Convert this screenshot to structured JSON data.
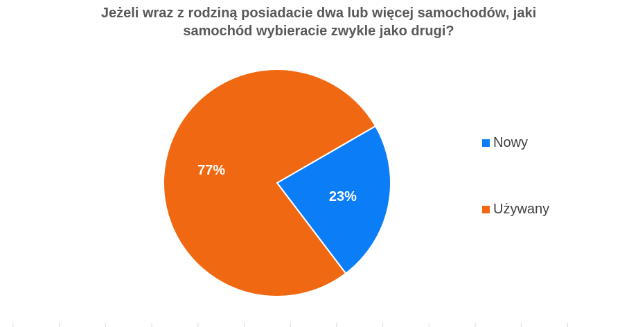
{
  "chart_data": {
    "type": "pie",
    "title": "Jeżeli wraz z rodziną posiadacie dwa lub więcej samochodów, jaki samochód wybieracie zwykle jako drugi?",
    "title_lines": [
      "Jeżeli wraz z rodziną posiadacie dwa lub więcej samochodów, jaki",
      "samochód wybieracie zwykle jako drugi?"
    ],
    "categories": [
      "Nowy",
      "Używany"
    ],
    "values": [
      23,
      77
    ],
    "data_labels": [
      "23%",
      "77%"
    ],
    "colors": [
      "#0a7df7",
      "#f06811"
    ],
    "legend_position": "right"
  }
}
